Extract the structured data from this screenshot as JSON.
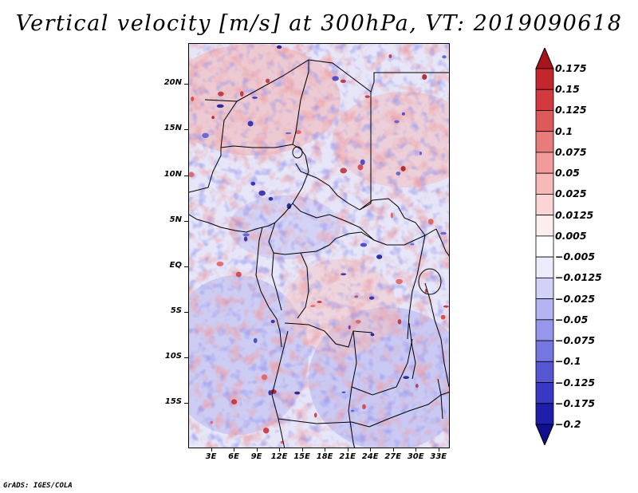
{
  "title": "Vertical velocity [m/s] at 300hPa, VT: 2019090618",
  "credit": "GrADS: IGES/COLA",
  "map": {
    "region": "Central Africa",
    "lat_labels": [
      "20N",
      "15N",
      "10N",
      "5N",
      "EQ",
      "5S",
      "10S",
      "15S"
    ],
    "lat_values": [
      20,
      15,
      10,
      5,
      0,
      -5,
      -10,
      -15
    ],
    "lon_labels": [
      "3E",
      "6E",
      "9E",
      "12E",
      "15E",
      "18E",
      "21E",
      "24E",
      "27E",
      "30E",
      "33E"
    ],
    "lon_values": [
      3,
      6,
      9,
      12,
      15,
      18,
      21,
      24,
      27,
      30,
      33
    ],
    "lon_range": [
      0,
      34.5
    ],
    "lat_range": [
      -20,
      24.5
    ]
  },
  "colorbar": {
    "labels": [
      "0.175",
      "0.15",
      "0.125",
      "0.1",
      "0.075",
      "0.05",
      "0.025",
      "0.0125",
      "0.005",
      "−0.005",
      "−0.0125",
      "−0.025",
      "−0.05",
      "−0.075",
      "−0.1",
      "−0.125",
      "−0.175",
      "−0.2"
    ],
    "colors": [
      "#a8141b",
      "#c1272d",
      "#d23a3f",
      "#de5a5a",
      "#e87c7b",
      "#f19b9b",
      "#f7b8b8",
      "#fbd5d5",
      "#fdeeee",
      "#ffffff",
      "#ececfc",
      "#d2d2f8",
      "#b4b4f2",
      "#9696ea",
      "#7676e0",
      "#5656d2",
      "#3838c2",
      "#1e1eaa",
      "#10108e"
    ]
  }
}
